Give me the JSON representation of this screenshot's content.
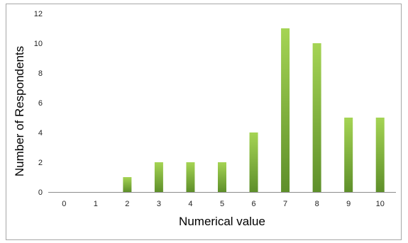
{
  "chart_data": {
    "type": "bar",
    "title": "",
    "xlabel": "Numerical value",
    "ylabel": "Number of Respondents",
    "categories": [
      "0",
      "1",
      "2",
      "3",
      "4",
      "5",
      "6",
      "7",
      "8",
      "9",
      "10"
    ],
    "values": [
      0,
      0,
      1,
      2,
      2,
      2,
      4,
      11,
      10,
      5,
      5
    ],
    "ylim": [
      0,
      12
    ],
    "yticks": [
      "0",
      "2",
      "4",
      "6",
      "8",
      "10",
      "12"
    ],
    "grid": false,
    "legend": "none",
    "bar_color_top": "#a5d454",
    "bar_color_bottom": "#5e8f2a"
  }
}
